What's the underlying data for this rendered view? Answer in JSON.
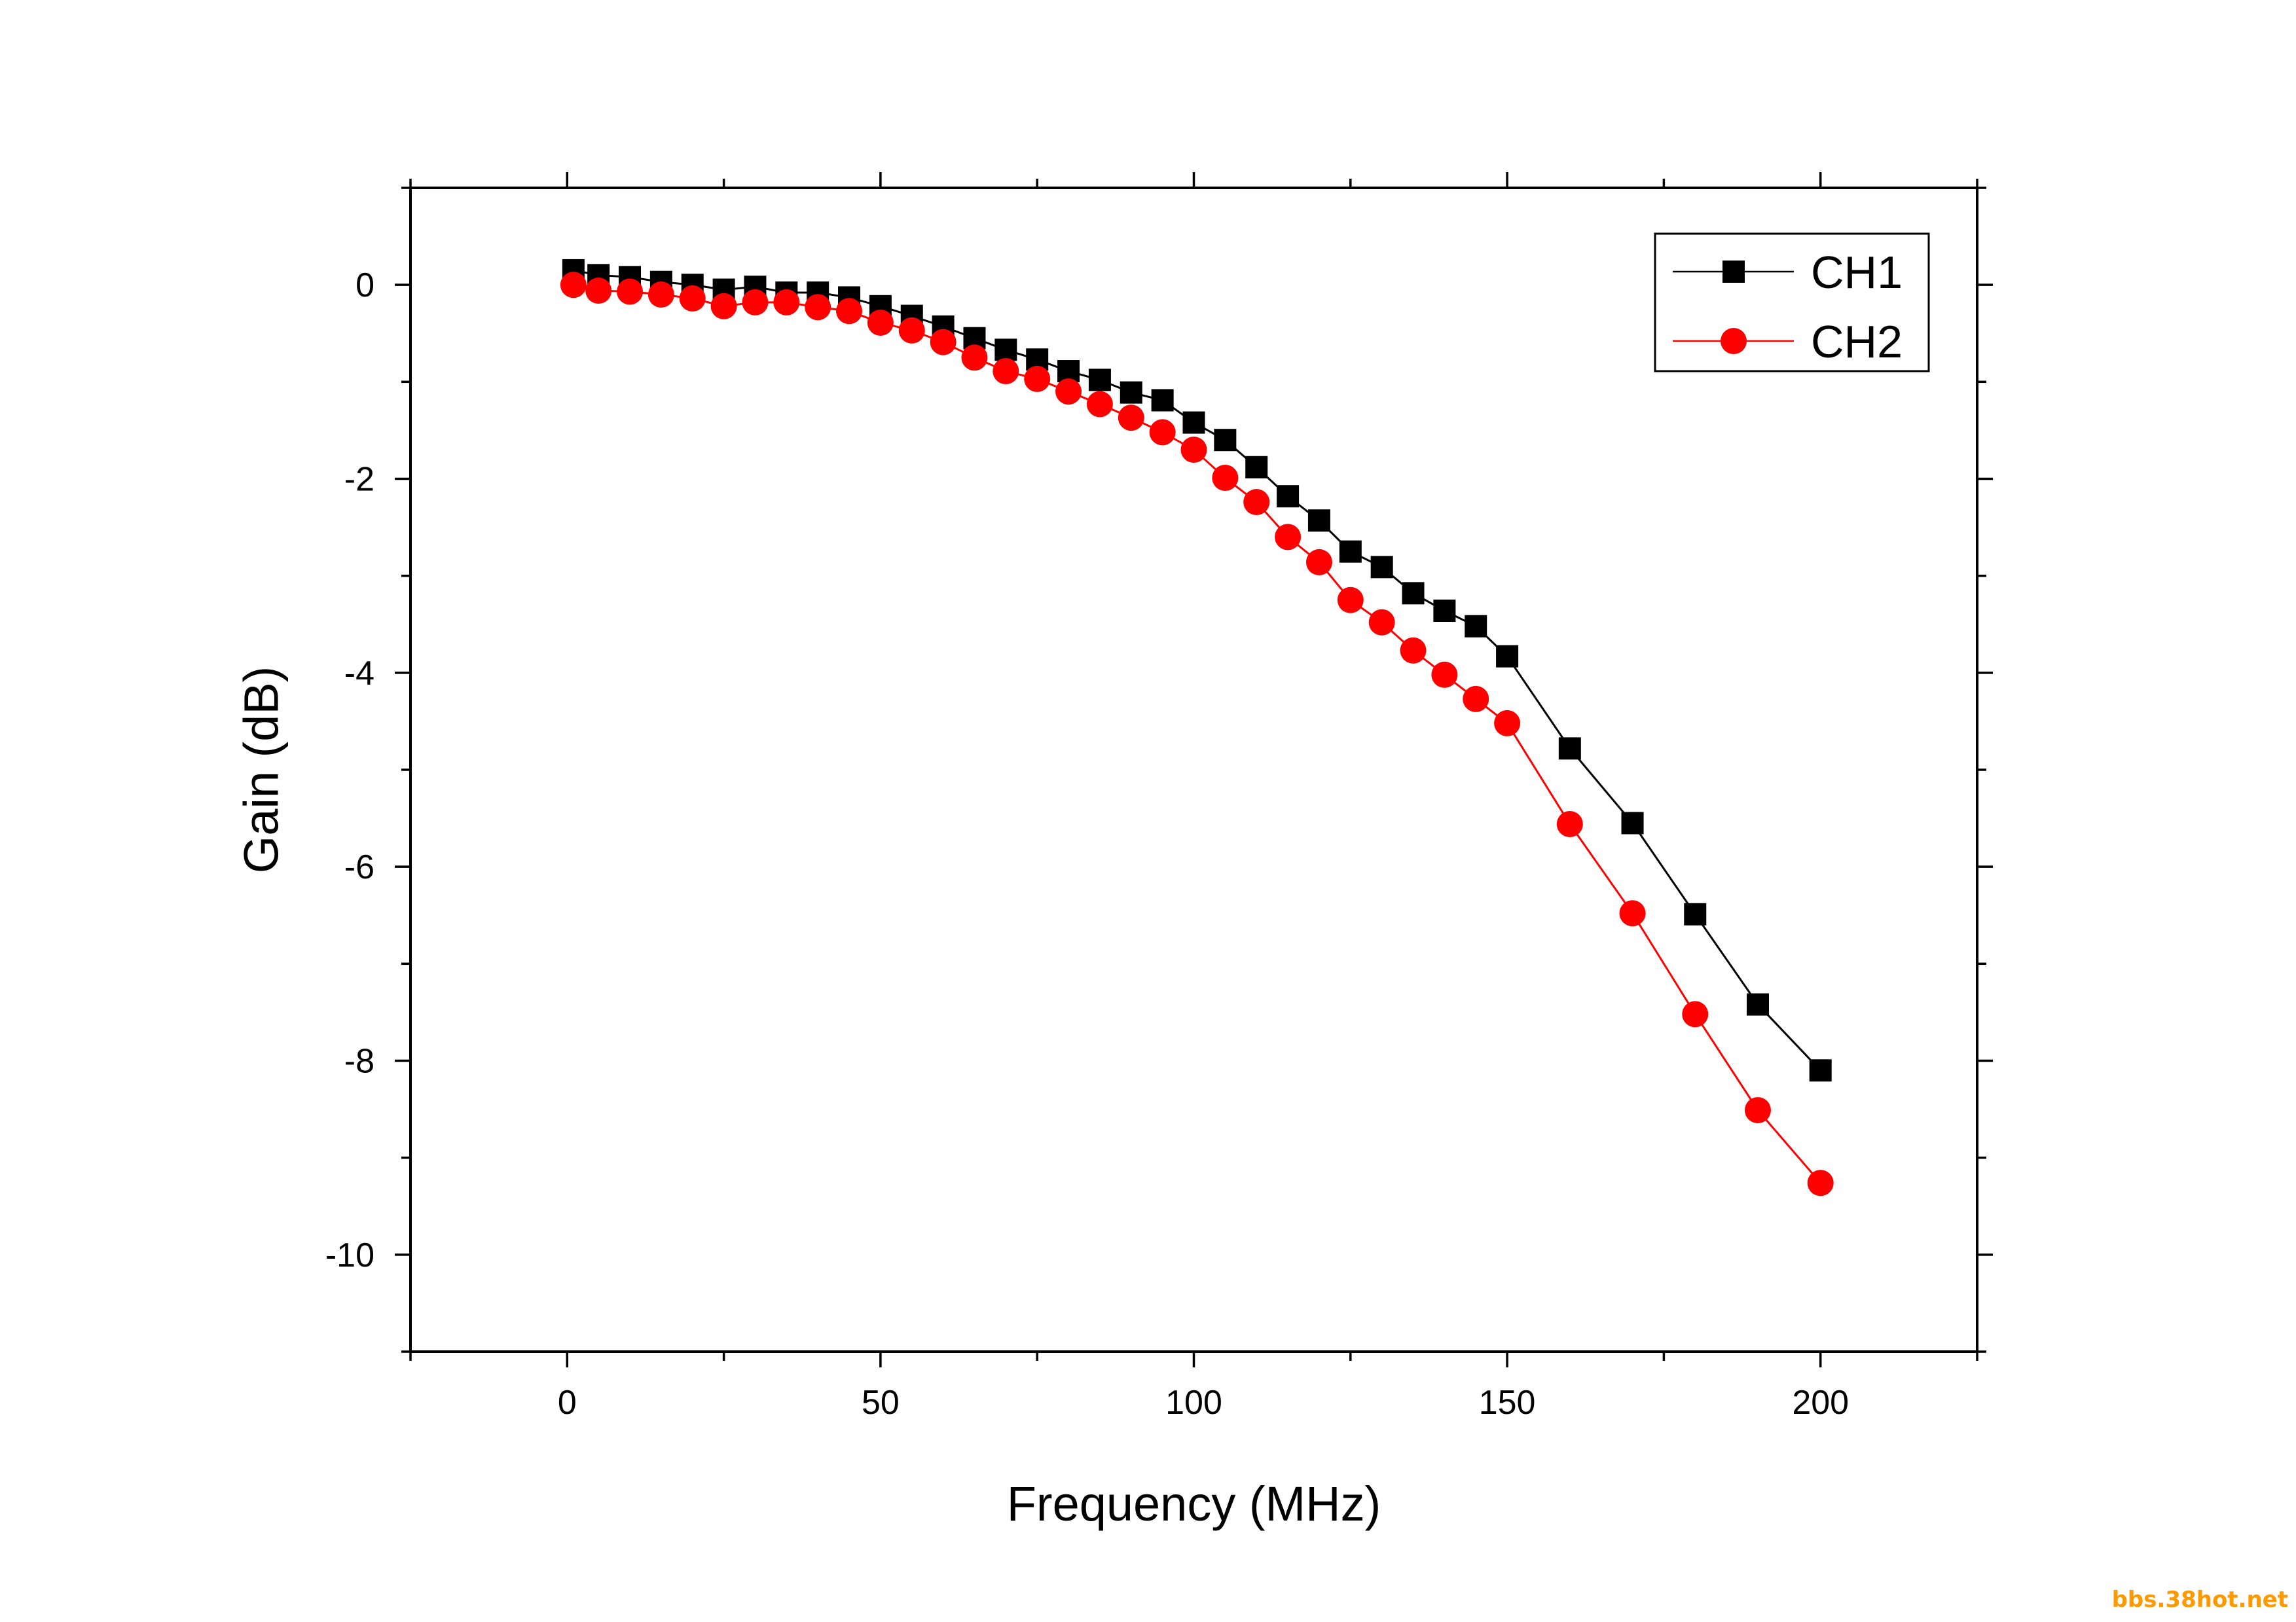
{
  "chart_data": {
    "type": "line",
    "title": "",
    "xlabel": "Frequency (MHz)",
    "ylabel": "Gain (dB)",
    "xlim": [
      -25,
      225
    ],
    "ylim": [
      -11,
      1
    ],
    "x_ticks": [
      0,
      50,
      100,
      150,
      200
    ],
    "y_ticks": [
      0,
      -2,
      -4,
      -6,
      -8,
      -10
    ],
    "x_tick_labels": [
      "0",
      "50",
      "100",
      "150",
      "200"
    ],
    "y_tick_labels": [
      "0",
      "-2",
      "-4",
      "-6",
      "-8",
      "-10"
    ],
    "grid": false,
    "legend_position": "top-right",
    "series": [
      {
        "name": "CH1",
        "color": "#000000",
        "marker": "square",
        "x": [
          1,
          5,
          10,
          15,
          20,
          25,
          30,
          35,
          40,
          45,
          50,
          55,
          60,
          65,
          70,
          75,
          80,
          85,
          90,
          95,
          100,
          105,
          110,
          115,
          120,
          125,
          130,
          135,
          140,
          145,
          150,
          160,
          170,
          180,
          190,
          200
        ],
        "y": [
          0.15,
          0.1,
          0.08,
          0.03,
          0.0,
          -0.05,
          -0.02,
          -0.08,
          -0.08,
          -0.13,
          -0.22,
          -0.32,
          -0.43,
          -0.55,
          -0.67,
          -0.77,
          -0.89,
          -0.98,
          -1.11,
          -1.19,
          -1.42,
          -1.6,
          -1.88,
          -2.18,
          -2.43,
          -2.75,
          -2.91,
          -3.18,
          -3.36,
          -3.52,
          -3.83,
          -4.78,
          -5.55,
          -6.49,
          -7.42,
          -8.1
        ]
      },
      {
        "name": "CH2",
        "color": "#ff0000",
        "marker": "circle",
        "x": [
          1,
          5,
          10,
          15,
          20,
          25,
          30,
          35,
          40,
          45,
          50,
          55,
          60,
          65,
          70,
          75,
          80,
          85,
          90,
          95,
          100,
          105,
          110,
          115,
          120,
          125,
          130,
          135,
          140,
          145,
          150,
          160,
          170,
          180,
          190,
          200
        ],
        "y": [
          0.0,
          -0.06,
          -0.07,
          -0.1,
          -0.14,
          -0.22,
          -0.18,
          -0.18,
          -0.23,
          -0.27,
          -0.39,
          -0.47,
          -0.59,
          -0.75,
          -0.89,
          -0.97,
          -1.1,
          -1.23,
          -1.37,
          -1.52,
          -1.7,
          -1.99,
          -2.24,
          -2.6,
          -2.86,
          -3.25,
          -3.48,
          -3.77,
          -4.02,
          -4.27,
          -4.52,
          -5.56,
          -6.48,
          -7.52,
          -8.51,
          -9.26
        ]
      }
    ]
  },
  "watermark": "bbs.38hot.net"
}
